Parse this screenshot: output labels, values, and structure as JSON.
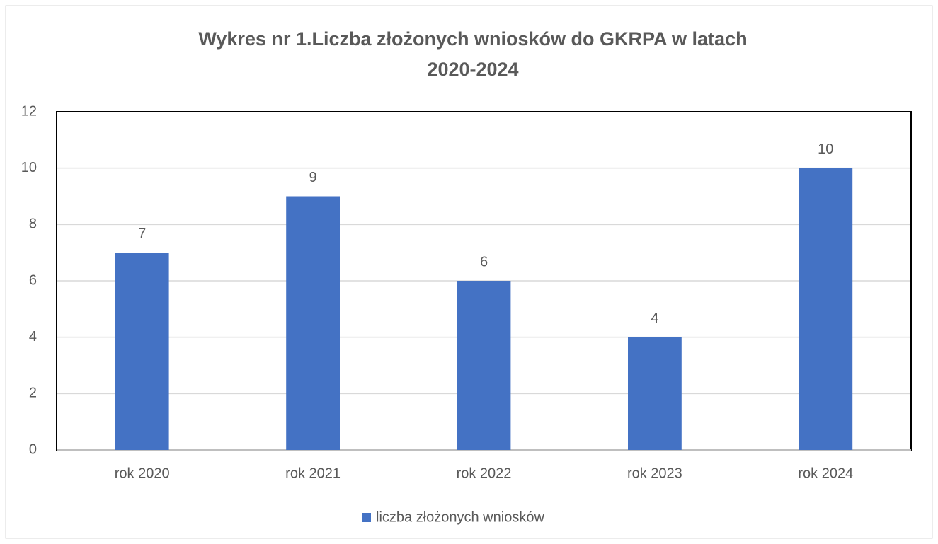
{
  "chart_data": {
    "type": "bar",
    "title": [
      "Wykres nr 1.Liczba złożonych wniosków do GKRPA w latach",
      "2020-2024"
    ],
    "categories": [
      "rok 2020",
      "rok 2021",
      "rok 2022",
      "rok 2023",
      "rok 2024"
    ],
    "series": [
      {
        "name": "liczba złożonych wniosków",
        "color": "#4472c4",
        "values": [
          7,
          9,
          6,
          4,
          10
        ]
      }
    ],
    "ylim": [
      0,
      12
    ],
    "yticks": [
      0,
      2,
      4,
      6,
      8,
      10,
      12
    ],
    "grid": true,
    "legend": "bottom"
  }
}
